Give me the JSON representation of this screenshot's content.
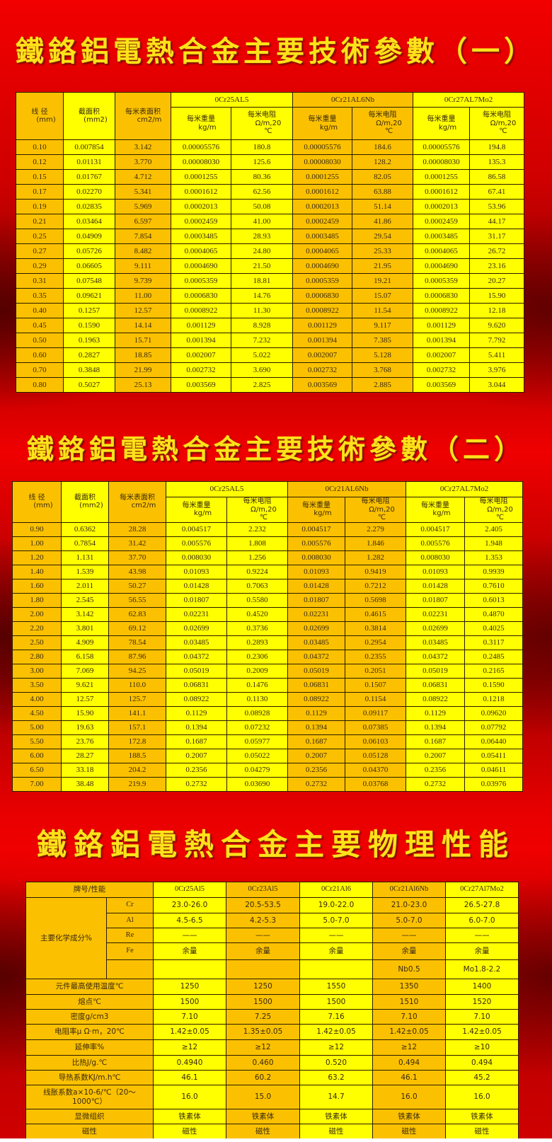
{
  "titles": {
    "t1": "鐵鉻鋁電熱合金主要技術參數（一）",
    "t2": "鐵鉻鋁電熱合金主要技術參數（二）",
    "t3": "鐵鉻鋁電熱合金主要物理性能"
  },
  "colors": {
    "orange_cell": "#fbc100",
    "yellow_cell": "#ffff00",
    "title": "#ffe21a",
    "background": "#e00000"
  },
  "specs_header": {
    "diameter": {
      "label": "线 径",
      "unit": "(mm)"
    },
    "area": {
      "label": "截面积",
      "unit": "(mm2)"
    },
    "surface": {
      "label": "每米表面积",
      "unit": "cm2/m"
    },
    "weight": {
      "label": "每米重量",
      "unit": "kg/m"
    },
    "resistance": {
      "label": "每米电阻",
      "unit": "Ω/m,20",
      "unit2": "℃"
    },
    "groups": [
      "0Cr25AL5",
      "0Cr21AL6Nb",
      "0Cr27AL7Mo2"
    ]
  },
  "table1": {
    "rows": [
      [
        "0.10",
        "0.007854",
        "3.142",
        "0.00005576",
        "180.8",
        "0.00005576",
        "184.6",
        "0.00005576",
        "194.8"
      ],
      [
        "0.12",
        "0.01131",
        "3.770",
        "0.00008030",
        "125.6",
        "0.00008030",
        "128.2",
        "0.00008030",
        "135.3"
      ],
      [
        "0.15",
        "0.01767",
        "4.712",
        "0.0001255",
        "80.36",
        "0.0001255",
        "82.05",
        "0.0001255",
        "86.58"
      ],
      [
        "0.17",
        "0.02270",
        "5.341",
        "0.0001612",
        "62.56",
        "0.0001612",
        "63.88",
        "0.0001612",
        "67.41"
      ],
      [
        "0.19",
        "0.02835",
        "5.969",
        "0.0002013",
        "50.08",
        "0.0002013",
        "51.14",
        "0.0002013",
        "53.96"
      ],
      [
        "0.21",
        "0.03464",
        "6.597",
        "0.0002459",
        "41.00",
        "0.0002459",
        "41.86",
        "0.0002459",
        "44.17"
      ],
      [
        "0.25",
        "0.04909",
        "7.854",
        "0.0003485",
        "28.93",
        "0.0003485",
        "29.54",
        "0.0003485",
        "31.17"
      ],
      [
        "0.27",
        "0.05726",
        "8.482",
        "0.0004065",
        "24.80",
        "0.0004065",
        "25.33",
        "0.0004065",
        "26.72"
      ],
      [
        "0.29",
        "0.06605",
        "9.111",
        "0.0004690",
        "21.50",
        "0.0004690",
        "21.95",
        "0.0004690",
        "23.16"
      ],
      [
        "0.31",
        "0.07548",
        "9.739",
        "0.0005359",
        "18.81",
        "0.0005359",
        "19.21",
        "0.0005359",
        "20.27"
      ],
      [
        "0.35",
        "0.09621",
        "11.00",
        "0.0006830",
        "14.76",
        "0.0006830",
        "15.07",
        "0.0006830",
        "15.90"
      ],
      [
        "0.40",
        "0.1257",
        "12.57",
        "0.0008922",
        "11.30",
        "0.0008922",
        "11.54",
        "0.0008922",
        "12.18"
      ],
      [
        "0.45",
        "0.1590",
        "14.14",
        "0.001129",
        "8.928",
        "0.001129",
        "9.117",
        "0.001129",
        "9.620"
      ],
      [
        "0.50",
        "0.1963",
        "15.71",
        "0.001394",
        "7.232",
        "0.001394",
        "7.385",
        "0.001394",
        "7.792"
      ],
      [
        "0.60",
        "0.2827",
        "18.85",
        "0.002007",
        "5.022",
        "0.002007",
        "5.128",
        "0.002007",
        "5.411"
      ],
      [
        "0.70",
        "0.3848",
        "21.99",
        "0.002732",
        "3.690",
        "0.002732",
        "3.768",
        "0.002732",
        "3.976"
      ],
      [
        "0.80",
        "0.5027",
        "25.13",
        "0.003569",
        "2.825",
        "0.003569",
        "2.885",
        "0.003569",
        "3.044"
      ]
    ]
  },
  "table2": {
    "rows": [
      [
        "0.90",
        "0.6362",
        "28.28",
        "0.004517",
        "2.232",
        "0.004517",
        "2.279",
        "0.004517",
        "2.405"
      ],
      [
        "1.00",
        "0.7854",
        "31.42",
        "0.005576",
        "1.808",
        "0.005576",
        "1.846",
        "0.005576",
        "1.948"
      ],
      [
        "1.20",
        "1.131",
        "37.70",
        "0.008030",
        "1.256",
        "0.008030",
        "1.282",
        "0.008030",
        "1.353"
      ],
      [
        "1.40",
        "1.539",
        "43.98",
        "0.01093",
        "0.9224",
        "0.01093",
        "0.9419",
        "0.01093",
        "0.9939"
      ],
      [
        "1.60",
        "2.011",
        "50.27",
        "0.01428",
        "0.7063",
        "0.01428",
        "0.7212",
        "0.01428",
        "0.7610"
      ],
      [
        "1.80",
        "2.545",
        "56.55",
        "0.01807",
        "0.5580",
        "0.01807",
        "0.5698",
        "0.01807",
        "0.6013"
      ],
      [
        "2.00",
        "3.142",
        "62.83",
        "0.02231",
        "0.4520",
        "0.02231",
        "0.4615",
        "0.02231",
        "0.4870"
      ],
      [
        "2.20",
        "3.801",
        "69.12",
        "0.02699",
        "0.3736",
        "0.02699",
        "0.3814",
        "0.02699",
        "0.4025"
      ],
      [
        "2.50",
        "4.909",
        "78.54",
        "0.03485",
        "0.2893",
        "0.03485",
        "0.2954",
        "0.03485",
        "0.3117"
      ],
      [
        "2.80",
        "6.158",
        "87.96",
        "0.04372",
        "0.2306",
        "0.04372",
        "0.2355",
        "0.04372",
        "0.2485"
      ],
      [
        "3.00",
        "7.069",
        "94.25",
        "0.05019",
        "0.2009",
        "0.05019",
        "0.2051",
        "0.05019",
        "0.2165"
      ],
      [
        "3.50",
        "9.621",
        "110.0",
        "0.06831",
        "0.1476",
        "0.06831",
        "0.1507",
        "0.06831",
        "0.1590"
      ],
      [
        "4.00",
        "12.57",
        "125.7",
        "0.08922",
        "0.1130",
        "0.08922",
        "0.1154",
        "0.08922",
        "0.1218"
      ],
      [
        "4.50",
        "15.90",
        "141.1",
        "0.1129",
        "0.08928",
        "0.1129",
        "0.09117",
        "0.1129",
        "0.09620"
      ],
      [
        "5.00",
        "19.63",
        "157.1",
        "0.1394",
        "0.07232",
        "0.1394",
        "0.07385",
        "0.1394",
        "0.07792"
      ],
      [
        "5.50",
        "23.76",
        "172.8",
        "0.1687",
        "0.05977",
        "0.1687",
        "0.06103",
        "0.1687",
        "0.06440"
      ],
      [
        "6.00",
        "28.27",
        "188.5",
        "0.2007",
        "0.05022",
        "0.2007",
        "0.05128",
        "0.2007",
        "0.05411"
      ],
      [
        "6.50",
        "33.18",
        "204.2",
        "0.2356",
        "0.04279",
        "0.2356",
        "0.04370",
        "0.2356",
        "0.04611"
      ],
      [
        "7.00",
        "38.48",
        "219.9",
        "0.2732",
        "0.03690",
        "0.2732",
        "0.03768",
        "0.2732",
        "0.03976"
      ]
    ]
  },
  "table3": {
    "header_label": "牌号/性能",
    "grades": [
      "0Cr25Al5",
      "0Cr23Al5",
      "0Cr21Al6",
      "0Cr21Al6Nb",
      "0Cr27Al7Mo2"
    ],
    "chem_label": "主要化学成分%",
    "chem_rows": [
      {
        "element": "Cr",
        "values": [
          "23.0-26.0",
          "20.5-53.5",
          "19.0-22.0",
          "21.0-23.0",
          "26.5-27.8"
        ]
      },
      {
        "element": "Al",
        "values": [
          "4.5-6.5",
          "4.2-5.3",
          "5.0-7.0",
          "5.0-7.0",
          "6.0-7.0"
        ]
      },
      {
        "element": "Re",
        "values": [
          "——",
          "——",
          "——",
          "——",
          "——"
        ]
      },
      {
        "element": "Fe",
        "values": [
          "余量",
          "余量",
          "余量",
          "余量",
          "余量"
        ]
      },
      {
        "element": "",
        "values": [
          "",
          "",
          "",
          "Nb0.5",
          "Mo1.8-2.2"
        ]
      }
    ],
    "props": [
      {
        "label": "元件最高使用温度℃",
        "values": [
          "1250",
          "1250",
          "1550",
          "1350",
          "1400"
        ]
      },
      {
        "label": "熔点℃",
        "values": [
          "1500",
          "1500",
          "1500",
          "1510",
          "1520"
        ]
      },
      {
        "label": "密度g/cm3",
        "values": [
          "7.10",
          "7.25",
          "7.16",
          "7.10",
          "7.10"
        ]
      },
      {
        "label": "电阻率μ Ω·m，20℃",
        "values": [
          "1.42±0.05",
          "1.35±0.05",
          "1.42±0.05",
          "1.42±0.05",
          "1.42±0.05"
        ]
      },
      {
        "label": "延伸率%",
        "values": [
          "≥12",
          "≥12",
          "≥12",
          "≥12",
          "≥10"
        ]
      },
      {
        "label": "比热J/g.℃",
        "values": [
          "0.4940",
          "0.460",
          "0.520",
          "0.494",
          "0.494"
        ]
      },
      {
        "label": "导热系数KJ/m.h℃",
        "values": [
          "46.1",
          "60.2",
          "63.2",
          "46.1",
          "45.2"
        ]
      },
      {
        "label": "线胀系数a×10-6/℃（20～1000℃）",
        "values": [
          "16.0",
          "15.0",
          "14.7",
          "16.0",
          "16.0"
        ]
      },
      {
        "label": "显微组织",
        "values": [
          "铁素体",
          "铁素体",
          "铁素体",
          "铁素体",
          "铁素体"
        ]
      },
      {
        "label": "磁性",
        "values": [
          "磁性",
          "磁性",
          "磁性",
          "磁性",
          "磁性"
        ]
      }
    ]
  }
}
